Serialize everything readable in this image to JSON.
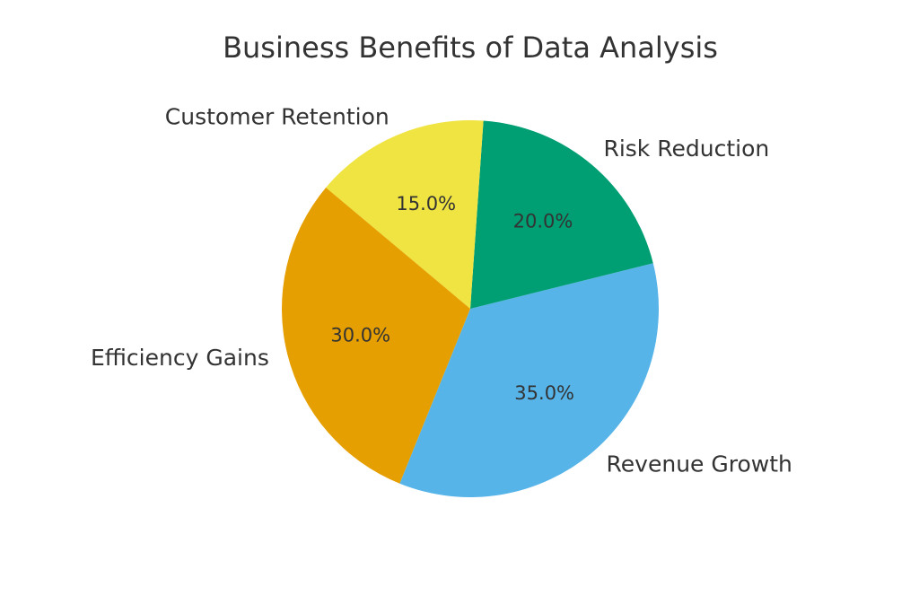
{
  "chart_data": {
    "type": "pie",
    "title": "Business Benefits of Data Analysis",
    "categories": [
      "Revenue Growth",
      "Risk Reduction",
      "Customer Retention",
      "Efficiency Gains"
    ],
    "values": [
      35,
      20,
      15,
      30
    ],
    "value_labels": [
      "35.0%",
      "20.0%",
      "15.0%",
      "30.0%"
    ],
    "colors": [
      "#56b4e9",
      "#009e73",
      "#f0e442",
      "#e69f00"
    ]
  }
}
